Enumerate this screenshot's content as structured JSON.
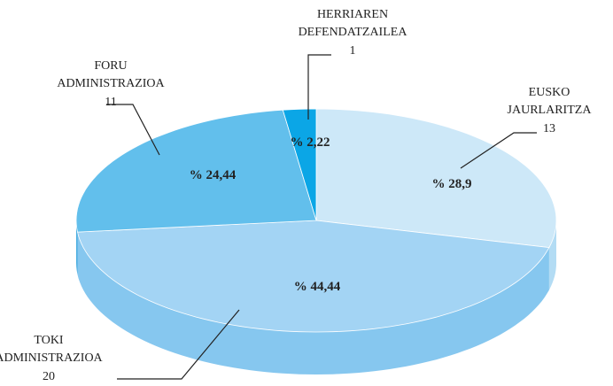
{
  "chart_data": {
    "type": "pie",
    "categories": [
      "EUSKO JAURLARITZA",
      "TOKI ADMINISTRAZIOA",
      "FORU ADMINISTRAZIOA",
      "HERRIAREN DEFENDATZAILEA"
    ],
    "values": [
      28.9,
      44.44,
      24.44,
      2.22
    ],
    "value_labels": [
      "% 28,9",
      "% 44,44",
      "% 24,44",
      "% 2,22"
    ],
    "counts": [
      13,
      20,
      11,
      1
    ],
    "colors": [
      "#cde8f8",
      "#a3d4f4",
      "#62bfec",
      "#0ba6e6"
    ],
    "side_colors": [
      "#b3dcf4",
      "#86c7ef",
      "#4aaee0",
      "#0890cc"
    ]
  }
}
